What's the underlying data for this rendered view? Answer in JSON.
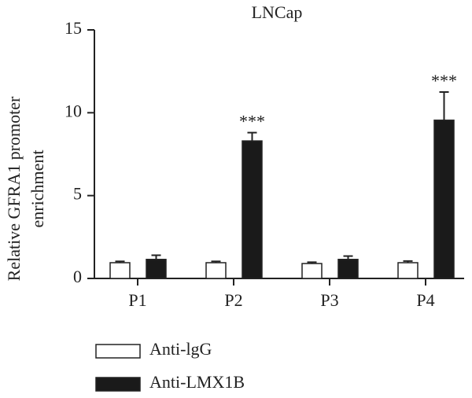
{
  "chart_data": {
    "type": "bar",
    "title": "LNCap",
    "ylabel": [
      "Relative GFRA1 promoter",
      "enrichment"
    ],
    "categories": [
      "P1",
      "P2",
      "P3",
      "P4"
    ],
    "series": [
      {
        "name": "Anti-lgG",
        "color": "#ffffff",
        "values": [
          0.95,
          0.95,
          0.9,
          0.95
        ],
        "errors": [
          0.08,
          0.08,
          0.08,
          0.1
        ]
      },
      {
        "name": "Anti-LMX1B",
        "color": "#1a1a1a",
        "values": [
          1.15,
          8.3,
          1.15,
          9.55
        ],
        "errors": [
          0.25,
          0.5,
          0.2,
          1.7
        ],
        "annotations": [
          null,
          "***",
          null,
          "***"
        ]
      }
    ],
    "ylim": [
      0,
      15
    ],
    "yticks": [
      0,
      5,
      10,
      15
    ],
    "grid": false,
    "legend": "bottom"
  }
}
